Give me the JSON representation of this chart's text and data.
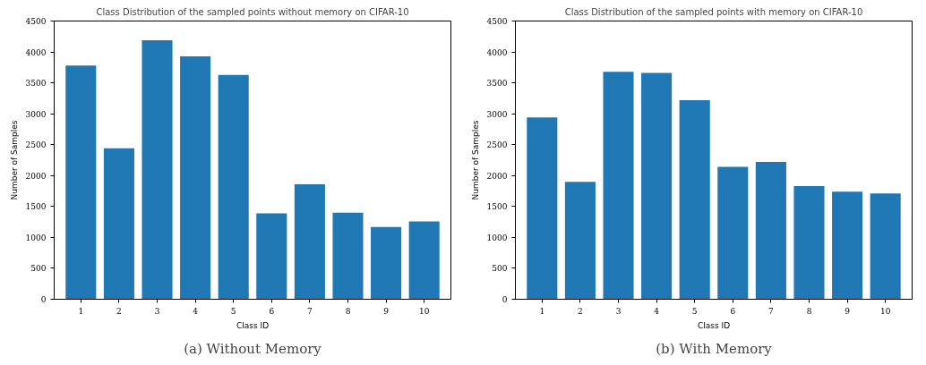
{
  "chart_data": [
    {
      "type": "bar",
      "title": "Class Distribution of the sampled points without memory on CIFAR-10",
      "xlabel": "Class ID",
      "ylabel": "Number of Samples",
      "categories": [
        "1",
        "2",
        "3",
        "4",
        "5",
        "6",
        "7",
        "8",
        "9",
        "10"
      ],
      "values": [
        3780,
        2440,
        4190,
        3930,
        3630,
        1390,
        1860,
        1400,
        1170,
        1260
      ],
      "color": "#1f77b4",
      "ylim": [
        0,
        4500
      ],
      "yticks": [
        0,
        500,
        1000,
        1500,
        2000,
        2500,
        3000,
        3500,
        4000,
        4500
      ],
      "grid": false,
      "annotations": [
        "(a) Without Memory"
      ]
    },
    {
      "type": "bar",
      "title": "Class Distribution of the sampled points with memory on CIFAR-10",
      "xlabel": "Class ID",
      "ylabel": "Number of Samples",
      "categories": [
        "1",
        "2",
        "3",
        "4",
        "5",
        "6",
        "7",
        "8",
        "9",
        "10"
      ],
      "values": [
        2940,
        1900,
        3680,
        3660,
        3220,
        2140,
        2220,
        1830,
        1740,
        1710
      ],
      "color": "#1f77b4",
      "ylim": [
        0,
        4500
      ],
      "yticks": [
        0,
        500,
        1000,
        1500,
        2000,
        2500,
        3000,
        3500,
        4000,
        4500
      ],
      "grid": false,
      "annotations": [
        "(b) With Memory"
      ]
    }
  ]
}
